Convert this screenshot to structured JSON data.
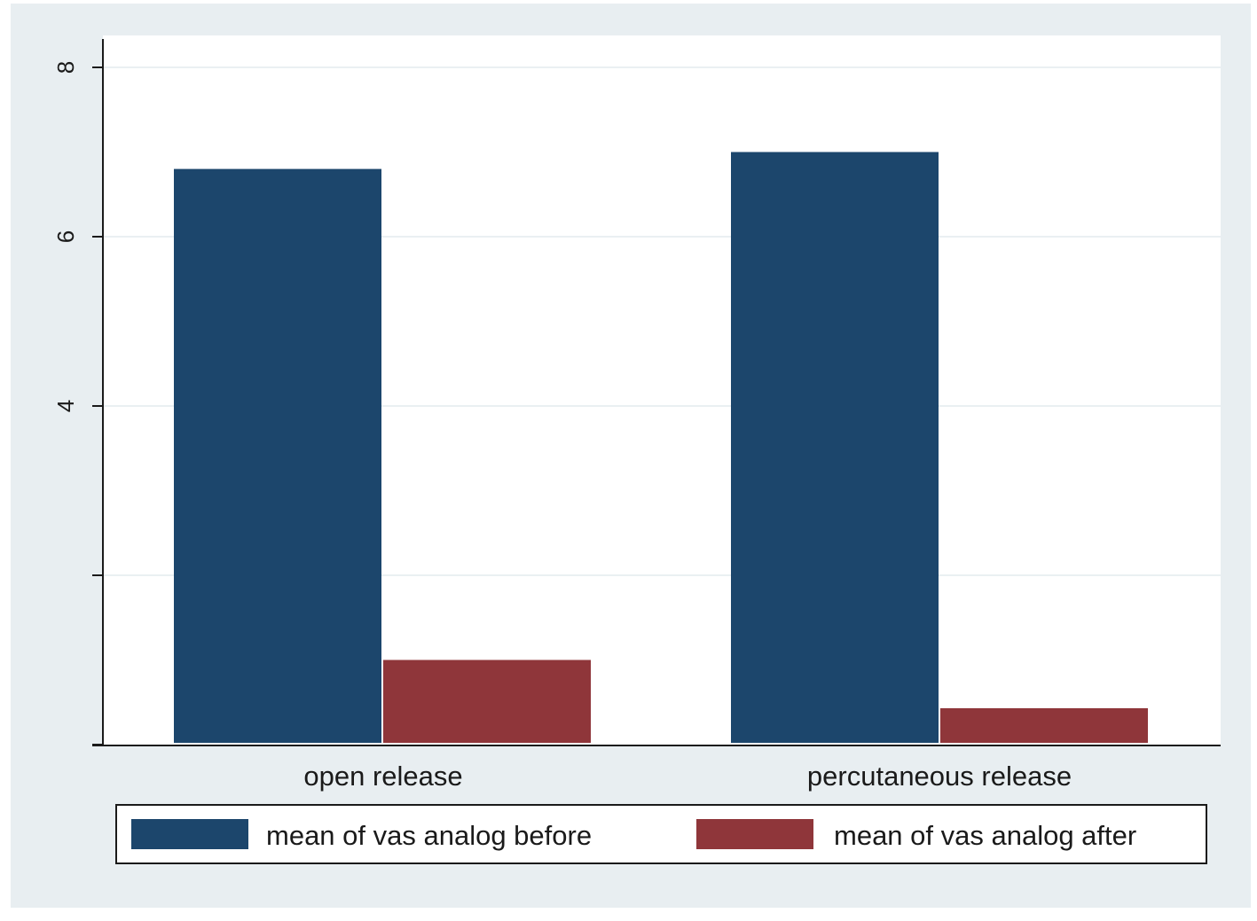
{
  "chart_data": {
    "type": "bar",
    "title": "",
    "xlabel": "",
    "ylabel": "",
    "categories": [
      "open release",
      "percutaneous release"
    ],
    "series": [
      {
        "name": "mean of vas analog before",
        "values": [
          6.8,
          7.0
        ]
      },
      {
        "name": "mean of vas analog after",
        "values": [
          1.0,
          0.43
        ]
      }
    ],
    "ylim": [
      0,
      8
    ],
    "yticks": [
      0,
      2,
      4,
      6,
      8
    ],
    "ytick_labels": [
      "",
      "",
      "4",
      "6",
      "8"
    ],
    "grid": true,
    "legend_position": "bottom",
    "colors": {
      "before": "#1c466c",
      "after": "#8f363a",
      "frame": "#e8eef1",
      "plot_area": "#ffffff",
      "grid": "#eaf0f2"
    }
  }
}
